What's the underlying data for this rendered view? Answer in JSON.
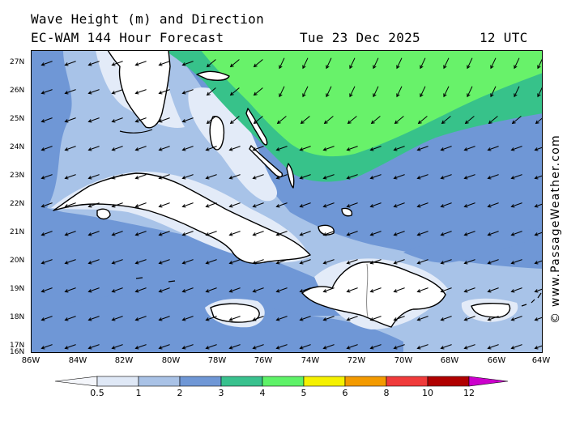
{
  "header": {
    "title": "Wave Height (m) and Direction",
    "model": "EC-WAM 144 Hour Forecast",
    "date": "Tue 23 Dec 2025",
    "time": "12 UTC"
  },
  "credit": "© www.PassageWeather.com",
  "map": {
    "lat_labels": [
      "27N",
      "26N",
      "25N",
      "24N",
      "23N",
      "22N",
      "21N",
      "20N",
      "19N",
      "18N",
      "17N",
      "16N"
    ],
    "lon_labels": [
      "86W",
      "84W",
      "82W",
      "80W",
      "78W",
      "76W",
      "74W",
      "72W",
      "70W",
      "68W",
      "66W",
      "64W"
    ],
    "regions": [
      "Florida",
      "Bahamas",
      "Cuba",
      "Jamaica",
      "Hispaniola",
      "Puerto Rico"
    ],
    "colors": {
      "land": "#ffffff",
      "lt_0_5": "#e3ebf8",
      "0_5_to_1": "#a8c3e8",
      "1_to_2": "#6f97d6",
      "3_to_4": "#37c28a",
      "4_to_5": "#68f26a"
    }
  },
  "colorbar": {
    "labels": [
      "0.5",
      "1",
      "2",
      "3",
      "4",
      "5",
      "6",
      "8",
      "10",
      "12"
    ],
    "colors": [
      "#f4f6fb",
      "#dfe8f6",
      "#a9c2e6",
      "#6f97d6",
      "#39c18e",
      "#5ef268",
      "#f5f100",
      "#f39a00",
      "#f03b3b",
      "#b00000",
      "#cc00cc"
    ]
  }
}
